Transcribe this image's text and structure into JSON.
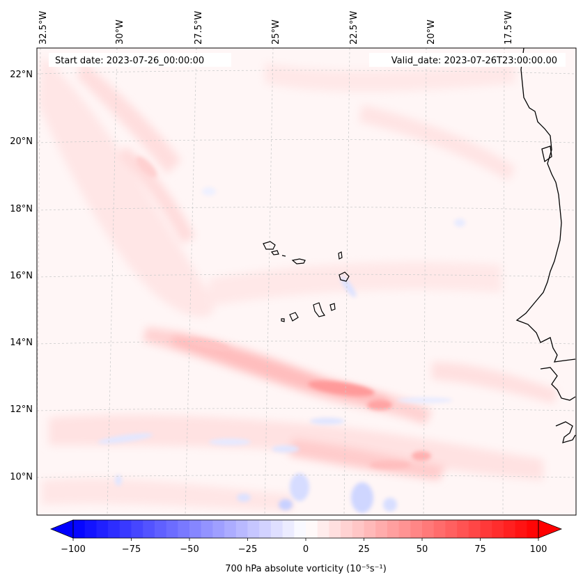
{
  "header": {
    "start_date": "Start date: 2023-07-26_00:00:00",
    "valid_date": "Valid_date: 2023-07-26T23:00:00.00"
  },
  "lon_labels": [
    "32.5°W",
    "30°W",
    "27.5°W",
    "25°W",
    "22.5°W",
    "20°W",
    "17.5°W"
  ],
  "lat_labels": [
    "22°N",
    "20°N",
    "18°N",
    "16°N",
    "14°N",
    "12°N",
    "10°N"
  ],
  "colorbar": {
    "label": "700 hPa absolute vorticity (10⁻⁵s⁻¹)",
    "ticks": [
      "−100",
      "−75",
      "−50",
      "−25",
      "0",
      "25",
      "50",
      "75",
      "100"
    ],
    "min": -100,
    "max": 100,
    "step": 5,
    "colormap": "bwr"
  }
}
